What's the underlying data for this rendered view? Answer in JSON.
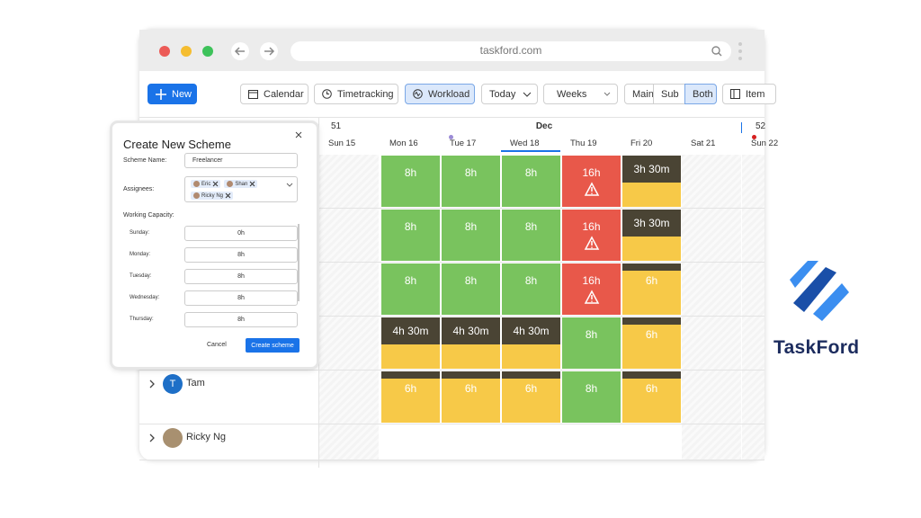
{
  "browser": {
    "url": "taskford.com"
  },
  "toolbar": {
    "new": "New",
    "calendar": "Calendar",
    "timetracking": "Timetracking",
    "workload": "Workload",
    "today": "Today",
    "weeks": "Weeks",
    "main": "Main",
    "sub": "Sub",
    "both": "Both",
    "item": "Item"
  },
  "header": {
    "week": "51",
    "month": "Dec",
    "next_week": "52",
    "days": [
      "Sun 15",
      "Mon 16",
      "Tue 17",
      "Wed 18",
      "Thu 19",
      "Fri 20",
      "Sat 21",
      "Sun 22"
    ]
  },
  "workload": {
    "rows": [
      {
        "cells": [
          "8h",
          "8h",
          "8h",
          "16h",
          "3h 30m"
        ]
      },
      {
        "cells": [
          "8h",
          "8h",
          "8h",
          "16h",
          "3h 30m"
        ]
      },
      {
        "cells": [
          "8h",
          "8h",
          "8h",
          "16h",
          "6h"
        ]
      },
      {
        "cells": [
          "4h 30m",
          "4h 30m",
          "4h 30m",
          "8h",
          "6h"
        ]
      },
      {
        "name": "Tam",
        "avatar": "T",
        "cells": [
          "6h",
          "6h",
          "6h",
          "8h",
          "6h"
        ]
      },
      {
        "name": "Ricky Ng",
        "cells": []
      }
    ]
  },
  "modal": {
    "title": "Create New Scheme",
    "scheme_name_label": "Scheme Name:",
    "scheme_name": "Freelancer",
    "assignees_label": "Assignees:",
    "assignees": [
      "Eric",
      "Shan",
      "Ricky Ng"
    ],
    "capacity_label": "Working Capacity:",
    "capacity": [
      {
        "day": "Sunday:",
        "hours": "0h"
      },
      {
        "day": "Monday:",
        "hours": "8h"
      },
      {
        "day": "Tuesday:",
        "hours": "8h"
      },
      {
        "day": "Wednesday:",
        "hours": "8h"
      },
      {
        "day": "Thursday:",
        "hours": "8h"
      }
    ],
    "cancel": "Cancel",
    "create": "Create scheme"
  },
  "logo": {
    "text": "TaskFord"
  }
}
